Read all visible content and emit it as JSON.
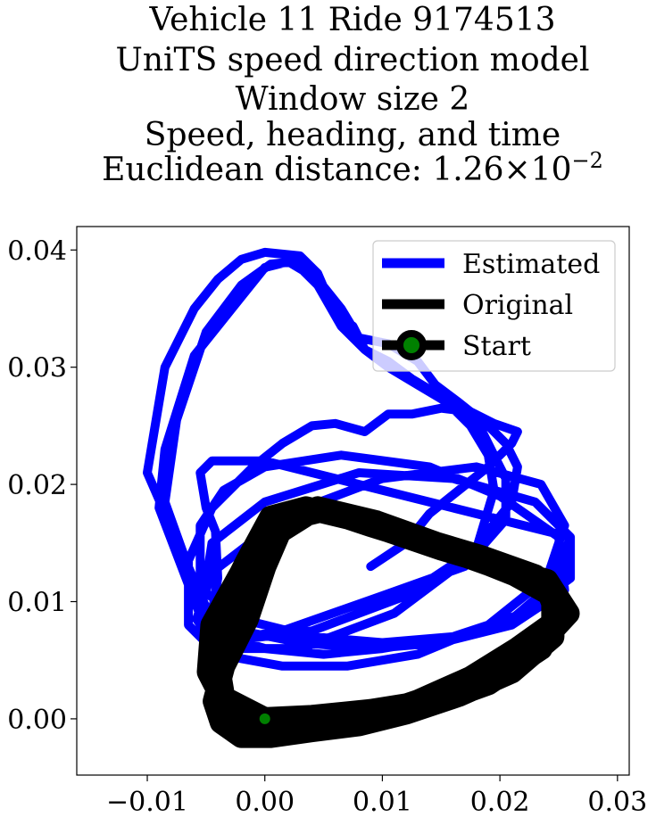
{
  "chart_data": {
    "type": "line",
    "title_lines": [
      "Vehicle 11 Ride 9174513",
      "UniTS speed direction model",
      "Window size 2",
      "Speed, heading, and time"
    ],
    "distance_label": "Euclidean distance: ",
    "distance_mantissa": "1.26",
    "distance_times": "×",
    "distance_base": "10",
    "distance_exponent": "−2",
    "xlim": [
      -0.016,
      0.031
    ],
    "ylim": [
      -0.0048,
      0.042
    ],
    "xticks": [
      {
        "value": -0.01,
        "label": "−0.01"
      },
      {
        "value": 0.0,
        "label": "0.00"
      },
      {
        "value": 0.01,
        "label": "0.01"
      },
      {
        "value": 0.02,
        "label": "0.02"
      },
      {
        "value": 0.03,
        "label": "0.03"
      }
    ],
    "yticks": [
      {
        "value": 0.0,
        "label": "0.00"
      },
      {
        "value": 0.01,
        "label": "0.01"
      },
      {
        "value": 0.02,
        "label": "0.02"
      },
      {
        "value": 0.03,
        "label": "0.03"
      },
      {
        "value": 0.04,
        "label": "0.04"
      }
    ],
    "legend_position": "top-right",
    "grid": false,
    "series": [
      {
        "name": "Estimated",
        "color": "#0000ff",
        "x": [
          0.0,
          -0.004,
          -0.005,
          -0.0045,
          -0.004,
          -0.0042,
          -0.005,
          -0.0055,
          -0.0045,
          0.0,
          0.008,
          0.016,
          0.022,
          0.026,
          0.026,
          0.022,
          0.016,
          0.01,
          0.005,
          0.0,
          -0.005,
          -0.009,
          -0.0085,
          -0.006,
          -0.002,
          0.0,
          0.002,
          0.0045,
          0.0065,
          0.008,
          0.0105,
          0.013,
          0.0145,
          0.0165,
          0.019,
          0.0205,
          0.0215,
          0.021,
          0.017,
          0.011,
          0.003,
          -0.0045,
          -0.0055,
          -0.0055,
          -0.0055,
          -0.0035,
          0.0,
          0.0065,
          0.014,
          0.02,
          0.025,
          0.0255,
          0.021,
          0.015,
          0.009,
          0.003,
          -0.002,
          -0.005,
          -0.01,
          -0.0095,
          -0.0085,
          -0.006,
          -0.004,
          -0.002,
          0.0,
          0.003,
          0.0045,
          0.006,
          0.0075,
          0.0085,
          0.0105,
          0.0125,
          0.015,
          0.017,
          0.0185,
          0.0195,
          0.0205,
          0.0205,
          0.017,
          0.01,
          0.0015,
          -0.0045,
          -0.0055,
          -0.0045,
          0.0,
          0.008,
          0.016,
          0.023,
          0.026,
          0.0245,
          0.021,
          0.016,
          0.01,
          0.004,
          -0.002,
          -0.006,
          -0.0085,
          -0.0075,
          -0.005,
          -0.002,
          0.0005,
          0.0025,
          0.0045,
          0.0065,
          0.0085,
          0.0105,
          0.013,
          0.0155,
          0.0175,
          0.019,
          0.0195,
          0.018,
          0.012,
          0.004,
          -0.0045,
          -0.0058,
          -0.0045,
          0.002,
          0.01,
          0.018,
          0.0235,
          0.0255,
          0.024,
          0.019,
          0.013,
          0.007,
          0.0015,
          -0.004,
          -0.0065,
          -0.0065,
          -0.0045,
          -0.001,
          0.0015,
          0.004,
          0.006,
          0.0085,
          0.0105,
          0.0125,
          0.015,
          0.0175,
          0.0195,
          0.0215,
          0.021,
          0.019,
          0.0165,
          0.014,
          0.012,
          0.009
        ],
        "y": [
          0.0,
          0.002,
          0.0055,
          0.009,
          0.012,
          0.016,
          0.018,
          0.021,
          0.022,
          0.022,
          0.02,
          0.018,
          0.0165,
          0.0155,
          0.012,
          0.009,
          0.007,
          0.006,
          0.0055,
          0.006,
          0.0075,
          0.018,
          0.023,
          0.031,
          0.036,
          0.0385,
          0.039,
          0.0375,
          0.035,
          0.0325,
          0.032,
          0.0305,
          0.0285,
          0.027,
          0.025,
          0.0235,
          0.0215,
          0.0185,
          0.0135,
          0.009,
          0.006,
          0.006,
          0.0085,
          0.0125,
          0.0165,
          0.0195,
          0.0215,
          0.0225,
          0.0215,
          0.019,
          0.0155,
          0.011,
          0.008,
          0.0065,
          0.006,
          0.0065,
          0.0075,
          0.0095,
          0.021,
          0.024,
          0.03,
          0.035,
          0.0375,
          0.0392,
          0.0398,
          0.0395,
          0.038,
          0.0345,
          0.0335,
          0.0315,
          0.0305,
          0.029,
          0.0275,
          0.026,
          0.0245,
          0.0225,
          0.0205,
          0.017,
          0.013,
          0.0105,
          0.0075,
          0.0065,
          0.0085,
          0.015,
          0.0185,
          0.021,
          0.0205,
          0.0185,
          0.0155,
          0.0115,
          0.0085,
          0.007,
          0.0065,
          0.007,
          0.0085,
          0.0115,
          0.0185,
          0.0255,
          0.033,
          0.037,
          0.0388,
          0.039,
          0.037,
          0.0335,
          0.0315,
          0.03,
          0.0285,
          0.027,
          0.025,
          0.0225,
          0.0195,
          0.0145,
          0.0105,
          0.0075,
          0.0065,
          0.0085,
          0.0125,
          0.0175,
          0.0205,
          0.0215,
          0.02,
          0.0165,
          0.012,
          0.008,
          0.0055,
          0.0045,
          0.0045,
          0.0055,
          0.008,
          0.0135,
          0.018,
          0.0215,
          0.0235,
          0.025,
          0.0252,
          0.0245,
          0.026,
          0.026,
          0.0265,
          0.0262,
          0.0252,
          0.0245,
          0.0235,
          0.0215,
          0.0195,
          0.0175,
          0.015,
          0.013
        ]
      },
      {
        "name": "Original",
        "color": "#000000",
        "x": [
          0.0,
          0.004,
          0.009,
          0.014,
          0.019,
          0.0235,
          0.0258,
          0.024,
          0.019,
          0.0145,
          0.009,
          0.0045,
          0.0015,
          0.0,
          -0.0015,
          -0.0035,
          -0.0043,
          -0.0037,
          -0.002,
          0.0005,
          0.004,
          0.008,
          0.012,
          0.0165,
          0.021,
          0.0245,
          0.0245,
          0.02,
          0.015,
          0.01,
          0.005,
          0.001,
          -0.002,
          -0.0045,
          -0.0048,
          -0.003,
          0.0,
          0.004,
          0.009,
          0.014,
          0.019,
          0.0235,
          0.025,
          0.023,
          0.0185,
          0.0135,
          0.0085,
          0.0035,
          0.0005,
          -0.0015,
          -0.004,
          -0.0045,
          -0.0035,
          -0.0015,
          0.001,
          0.0045,
          0.0085,
          0.013,
          0.0175,
          0.0215,
          0.025,
          0.024,
          0.0195,
          0.0145,
          0.0095,
          0.0045,
          0.001,
          -0.002,
          -0.0042,
          -0.0035,
          0.0
        ],
        "y": [
          0.0,
          0.0002,
          0.0007,
          0.0015,
          0.0035,
          0.0065,
          0.009,
          0.0118,
          0.0132,
          0.0148,
          0.0165,
          0.018,
          0.0165,
          0.013,
          0.0085,
          0.0045,
          0.0015,
          -0.0003,
          -0.0015,
          -0.0015,
          -0.001,
          -0.0005,
          0.0005,
          0.002,
          0.004,
          0.007,
          0.0105,
          0.013,
          0.0145,
          0.0162,
          0.0178,
          0.0168,
          0.0125,
          0.008,
          0.004,
          0.0005,
          -0.001,
          -0.0008,
          0.0,
          0.0012,
          0.003,
          0.006,
          0.0095,
          0.0122,
          0.0138,
          0.0153,
          0.0168,
          0.018,
          0.0172,
          0.0135,
          0.0085,
          0.004,
          0.001,
          -0.0008,
          -0.0012,
          -0.0008,
          0.0,
          0.0015,
          0.0035,
          0.006,
          0.0085,
          0.0112,
          0.013,
          0.015,
          0.0168,
          0.018,
          0.0158,
          0.011,
          0.006,
          0.0018,
          0.0
        ]
      }
    ],
    "legend": [
      {
        "label": "Estimated",
        "color": "#0000ff"
      },
      {
        "label": "Original",
        "color": "#000000"
      },
      {
        "label": "Start",
        "color": "#000000",
        "marker_color": "#008000"
      }
    ],
    "start_point": {
      "x": 0.0,
      "y": 0.0,
      "color": "#008000"
    }
  }
}
